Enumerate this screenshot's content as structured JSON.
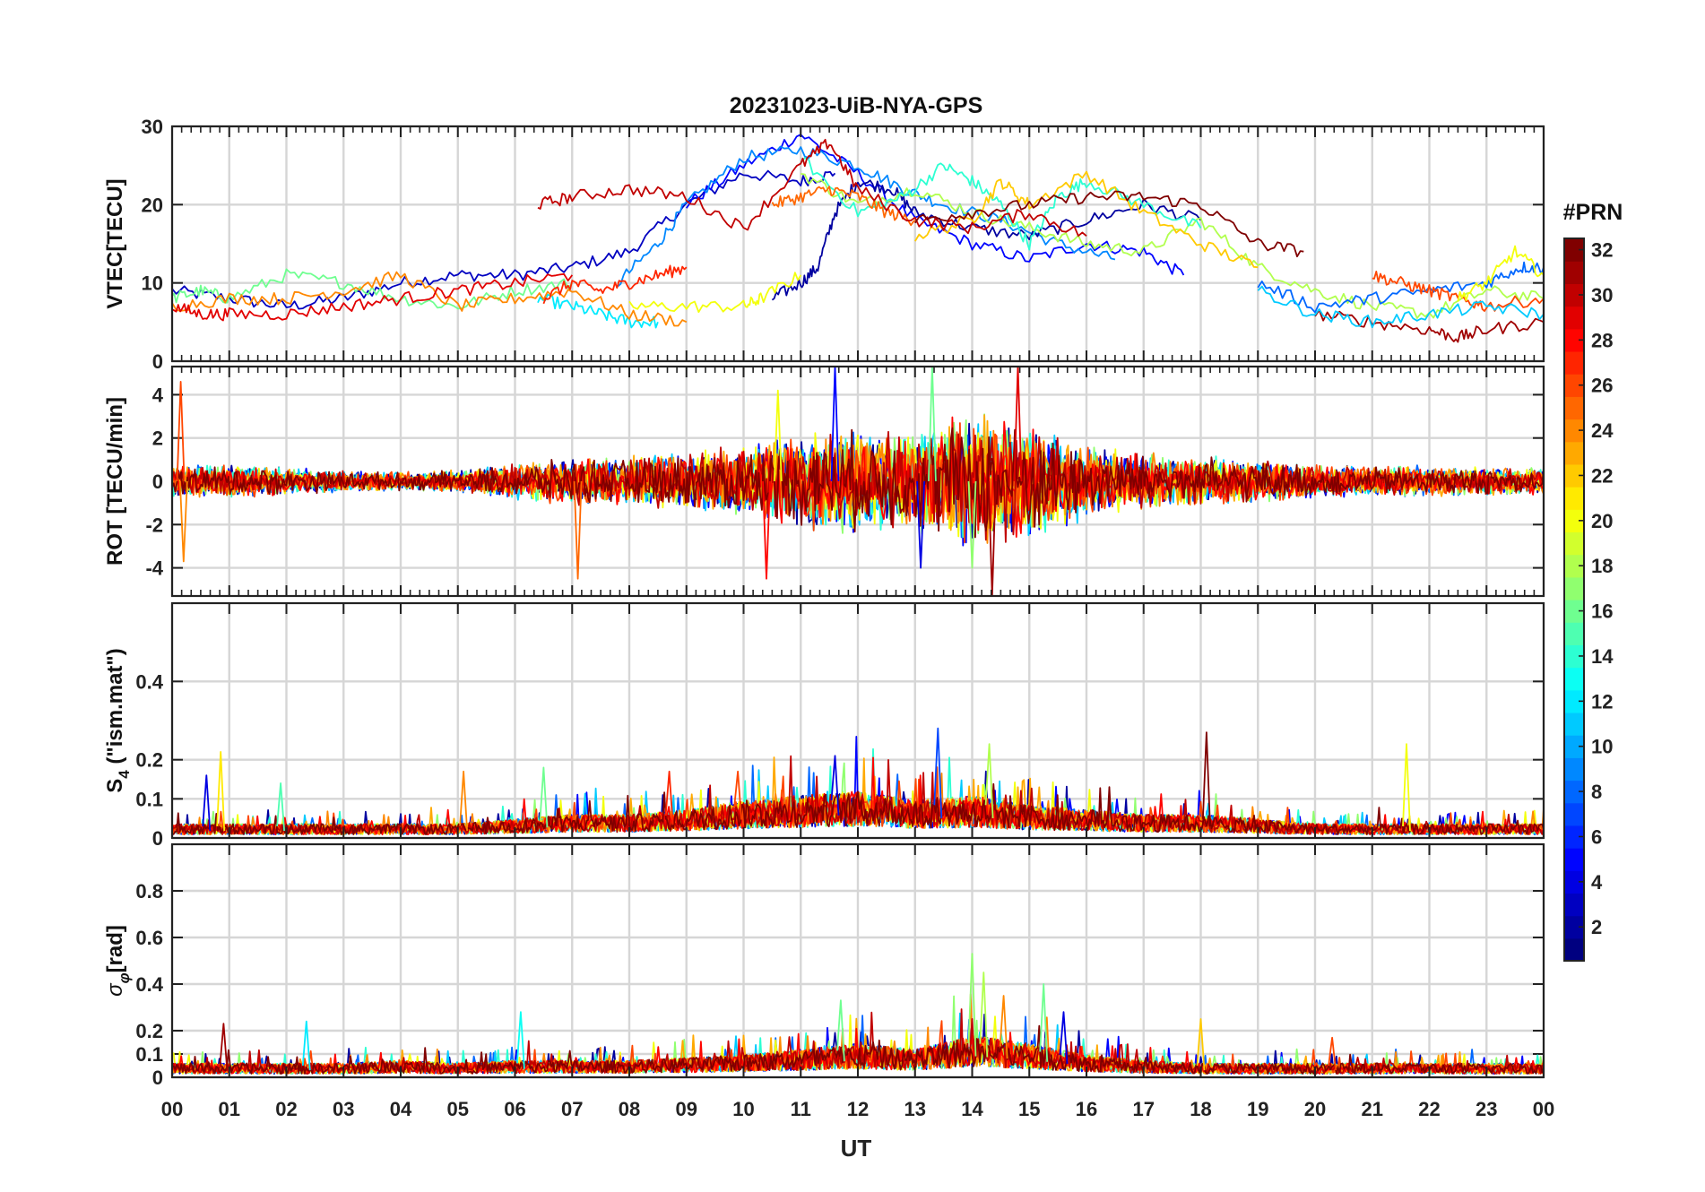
{
  "chart_data": {
    "type": "line",
    "title": "20231023-UiB-NYA-GPS",
    "xlabel": "UT",
    "x_ticks": [
      "00",
      "01",
      "02",
      "03",
      "04",
      "05",
      "06",
      "07",
      "08",
      "09",
      "10",
      "11",
      "12",
      "13",
      "14",
      "15",
      "16",
      "17",
      "18",
      "19",
      "20",
      "21",
      "22",
      "23",
      "00"
    ],
    "xlim": [
      0,
      24
    ],
    "colorbar": {
      "label": "#PRN",
      "range": [
        1,
        32
      ],
      "ticks": [
        "2",
        "4",
        "6",
        "8",
        "10",
        "12",
        "14",
        "16",
        "18",
        "20",
        "22",
        "24",
        "26",
        "28",
        "30",
        "32"
      ],
      "colormap": "jet"
    },
    "panels": [
      {
        "id": "vtec",
        "ylabel": "VTEC[TECU]",
        "ylim": [
          0,
          30
        ],
        "yticks": [
          "0",
          "10",
          "20",
          "30"
        ],
        "ytick_values": [
          0,
          10,
          20,
          30
        ],
        "series": [
          {
            "prn": 3,
            "x": [
              0,
              1,
              2,
              3,
              4,
              5,
              6,
              7,
              8,
              9,
              10,
              11,
              11.6
            ],
            "values": [
              9,
              8,
              7,
              8,
              10,
              11,
              11,
              12,
              14,
              20,
              24,
              23,
              24
            ]
          },
          {
            "prn": 5,
            "x": [
              9,
              10,
              11,
              12,
              13,
              14,
              15,
              16,
              17,
              17.7
            ],
            "values": [
              20,
              25,
              29,
              24,
              18,
              15,
              13,
              15,
              14,
              11
            ]
          },
          {
            "prn": 9,
            "x": [
              7.8,
              8.5,
              9,
              10,
              11,
              12,
              12.8,
              13.5,
              14.5,
              15.5,
              16.5
            ],
            "values": [
              10,
              15,
              20,
              26,
              27,
              25,
              22,
              20,
              18,
              15,
              13
            ]
          },
          {
            "prn": 2,
            "x": [
              10.5,
              11,
              11.3,
              11.6,
              12,
              12.6,
              13,
              14,
              15,
              16,
              17,
              18
            ],
            "values": [
              8,
              10,
              12,
              19,
              23,
              22,
              19,
              17,
              16,
              18,
              20,
              18
            ]
          },
          {
            "prn": 12,
            "x": [
              6.4,
              7,
              7.5,
              8,
              8.5
            ],
            "values": [
              8,
              7,
              6,
              5,
              5
            ]
          },
          {
            "prn": 16,
            "x": [
              0,
              0.5,
              1,
              2,
              3,
              4,
              5,
              6,
              7
            ],
            "values": [
              8,
              9,
              8,
              11,
              10,
              8,
              7,
              9,
              10
            ]
          },
          {
            "prn": 18,
            "x": [
              11,
              12,
              13,
              14,
              15,
              16,
              17,
              18,
              19,
              20,
              21,
              22,
              23,
              24
            ],
            "values": [
              24,
              20,
              22,
              19,
              17,
              15,
              14,
              18,
              12,
              9,
              7,
              6,
              9,
              8
            ]
          },
          {
            "prn": 14,
            "x": [
              11,
              12,
              12.8,
              13.5,
              14,
              14.5,
              15,
              15.5,
              16,
              17,
              18
            ],
            "values": [
              26,
              19,
              21,
              25,
              23,
              20,
              15,
              21,
              23,
              20,
              17
            ]
          },
          {
            "prn": 20,
            "x": [
              8,
              9,
              10,
              10.3,
              11
            ],
            "values": [
              7,
              7,
              7,
              8,
              11
            ]
          },
          {
            "prn": 22,
            "x": [
              13,
              14,
              14.5,
              15,
              16,
              17,
              18,
              19
            ],
            "values": [
              16,
              18,
              23,
              20,
              24,
              19,
              15,
              12
            ]
          },
          {
            "prn": 24,
            "x": [
              0,
              1,
              2,
              3,
              4,
              5,
              6,
              7,
              8,
              9
            ],
            "values": [
              7,
              8,
              8,
              9,
              11,
              7,
              8,
              9,
              6,
              5
            ]
          },
          {
            "prn": 25,
            "x": [
              10.5,
              11,
              11.5,
              12,
              12.5,
              13
            ],
            "values": [
              20,
              21,
              22,
              21,
              19,
              18
            ]
          },
          {
            "prn": 27,
            "x": [
              6.5,
              7,
              7.5,
              8,
              8.5,
              9
            ],
            "values": [
              8,
              10,
              9,
              10,
              11,
              12
            ]
          },
          {
            "prn": 29,
            "x": [
              0,
              0.5,
              1,
              2,
              3,
              4,
              5,
              6,
              7
            ],
            "values": [
              7,
              6,
              6,
              6,
              7,
              8,
              9,
              10,
              11
            ]
          },
          {
            "prn": 30,
            "x": [
              6.4,
              7,
              8,
              9,
              10,
              11,
              11.5,
              12,
              13,
              14,
              15,
              16
            ],
            "values": [
              20,
              21,
              22,
              21,
              17,
              25,
              28,
              22,
              18,
              17,
              19,
              16
            ]
          },
          {
            "prn": 32,
            "x": [
              13,
              14,
              15,
              16,
              17,
              18,
              19,
              19.8
            ],
            "values": [
              18,
              19,
              20,
              21,
              21,
              20,
              15,
              14
            ]
          },
          {
            "prn": 31,
            "x": [
              20,
              21,
              22,
              22.5,
              23,
              24
            ],
            "values": [
              6,
              5,
              4,
              3,
              4,
              5
            ]
          },
          {
            "prn": 8,
            "x": [
              19,
              20,
              21,
              22,
              23,
              23.6,
              24
            ],
            "values": [
              10,
              7,
              8,
              9,
              10,
              12,
              12
            ]
          },
          {
            "prn": 26,
            "x": [
              21,
              21.5,
              22,
              22.5,
              23,
              24
            ],
            "values": [
              11,
              10,
              9,
              8,
              7,
              8
            ]
          },
          {
            "prn": 20,
            "x": [
              22.5,
              23,
              23.5,
              24
            ],
            "values": [
              8,
              10,
              14,
              11
            ]
          },
          {
            "prn": 11,
            "x": [
              19,
              20,
              21,
              22,
              23,
              24
            ],
            "values": [
              9,
              6,
              5,
              6,
              7,
              6
            ]
          }
        ]
      },
      {
        "id": "rot",
        "ylabel": "ROT [TECU/min]",
        "ylim": [
          -5.3,
          5.3
        ],
        "yticks": [
          "-4",
          "-2",
          "0",
          "2",
          "4"
        ],
        "ytick_values": [
          -4,
          -2,
          0,
          2,
          4
        ],
        "noise_profile": {
          "x": [
            0,
            1,
            2,
            3,
            4,
            5,
            6,
            7,
            8,
            9,
            10,
            11,
            12,
            13,
            14,
            15,
            16,
            17,
            18,
            19,
            20,
            21,
            22,
            23,
            24
          ],
          "values": [
            0.5,
            0.55,
            0.45,
            0.35,
            0.3,
            0.35,
            0.6,
            0.75,
            0.8,
            0.9,
            1.2,
            1.5,
            1.7,
            1.6,
            2.2,
            1.9,
            1.2,
            0.9,
            0.8,
            0.7,
            0.55,
            0.5,
            0.5,
            0.45,
            0.45
          ]
        },
        "peaks": [
          {
            "prn": 26,
            "x": 0.15,
            "value": 4.6
          },
          {
            "prn": 24,
            "x": 0.2,
            "value": -3.7
          },
          {
            "prn": 25,
            "x": 7.1,
            "value": -4.5
          },
          {
            "prn": 28,
            "x": 10.4,
            "value": -4.5
          },
          {
            "prn": 5,
            "x": 11.6,
            "value": 5.3
          },
          {
            "prn": 16,
            "x": 13.3,
            "value": 5.3
          },
          {
            "prn": 4,
            "x": 13.1,
            "value": -4.0
          },
          {
            "prn": 31,
            "x": 14.35,
            "value": -5.3
          },
          {
            "prn": 29,
            "x": 14.8,
            "value": 5.3
          },
          {
            "prn": 17,
            "x": 14.0,
            "value": -4.0
          },
          {
            "prn": 20,
            "x": 10.6,
            "value": 4.2
          }
        ]
      },
      {
        "id": "s4",
        "ylabel": "S",
        "ylabel_sub": "4",
        "ylabel_suffix": " (\"ism.mat\")",
        "ylim": [
          0,
          0.6
        ],
        "yticks": [
          "0",
          "0.1",
          "0.2",
          "0.4"
        ],
        "ytick_values": [
          0,
          0.1,
          0.2,
          0.4
        ],
        "baseline_profile": {
          "x": [
            0,
            1,
            2,
            3,
            4,
            5,
            6,
            7,
            8,
            9,
            10,
            11,
            12,
            13,
            14,
            15,
            16,
            17,
            18,
            19,
            20,
            21,
            22,
            23,
            24
          ],
          "values": [
            0.03,
            0.03,
            0.03,
            0.03,
            0.03,
            0.03,
            0.04,
            0.05,
            0.05,
            0.06,
            0.08,
            0.09,
            0.1,
            0.08,
            0.09,
            0.07,
            0.06,
            0.05,
            0.05,
            0.04,
            0.03,
            0.03,
            0.03,
            0.03,
            0.03
          ]
        },
        "peaks": [
          {
            "prn": 21,
            "x": 0.85,
            "value": 0.22
          },
          {
            "prn": 4,
            "x": 0.6,
            "value": 0.16
          },
          {
            "prn": 24,
            "x": 5.1,
            "value": 0.17
          },
          {
            "prn": 16,
            "x": 6.5,
            "value": 0.18
          },
          {
            "prn": 27,
            "x": 8.7,
            "value": 0.17
          },
          {
            "prn": 4,
            "x": 11.6,
            "value": 0.21
          },
          {
            "prn": 7,
            "x": 13.4,
            "value": 0.28
          },
          {
            "prn": 18,
            "x": 14.3,
            "value": 0.24
          },
          {
            "prn": 32,
            "x": 18.1,
            "value": 0.27
          },
          {
            "prn": 20,
            "x": 21.6,
            "value": 0.24
          },
          {
            "prn": 15,
            "x": 1.9,
            "value": 0.14
          },
          {
            "prn": 26,
            "x": 9.9,
            "value": 0.17
          }
        ]
      },
      {
        "id": "sigma",
        "ylabel": "σ",
        "ylabel_sub": "φ",
        "ylabel_suffix": "[rad]",
        "ylim": [
          0,
          1.0
        ],
        "yticks": [
          "0",
          "0.1",
          "0.2",
          "0.4",
          "0.6",
          "0.8"
        ],
        "ytick_values": [
          0,
          0.1,
          0.2,
          0.4,
          0.6,
          0.8
        ],
        "baseline_profile": {
          "x": [
            0,
            1,
            2,
            3,
            4,
            5,
            6,
            7,
            8,
            9,
            10,
            11,
            12,
            13,
            14,
            15,
            16,
            17,
            18,
            19,
            20,
            21,
            22,
            23,
            24
          ],
          "values": [
            0.05,
            0.05,
            0.05,
            0.05,
            0.06,
            0.05,
            0.06,
            0.06,
            0.06,
            0.07,
            0.08,
            0.1,
            0.12,
            0.1,
            0.15,
            0.12,
            0.08,
            0.06,
            0.05,
            0.05,
            0.05,
            0.05,
            0.05,
            0.05,
            0.05
          ]
        },
        "peaks": [
          {
            "prn": 31,
            "x": 0.9,
            "value": 0.23
          },
          {
            "prn": 12,
            "x": 2.35,
            "value": 0.24
          },
          {
            "prn": 13,
            "x": 6.1,
            "value": 0.28
          },
          {
            "prn": 17,
            "x": 14.0,
            "value": 0.53
          },
          {
            "prn": 18,
            "x": 14.2,
            "value": 0.45
          },
          {
            "prn": 24,
            "x": 14.55,
            "value": 0.35
          },
          {
            "prn": 16,
            "x": 15.25,
            "value": 0.4
          },
          {
            "prn": 4,
            "x": 15.6,
            "value": 0.28
          },
          {
            "prn": 16,
            "x": 11.7,
            "value": 0.33
          },
          {
            "prn": 26,
            "x": 20.3,
            "value": 0.17
          },
          {
            "prn": 22,
            "x": 18.0,
            "value": 0.25
          }
        ]
      }
    ]
  }
}
